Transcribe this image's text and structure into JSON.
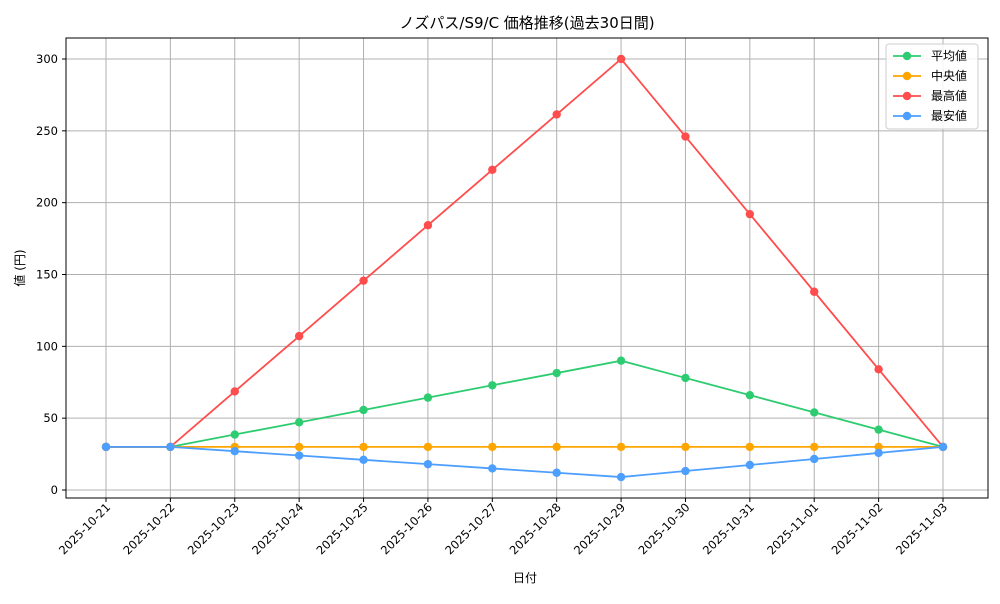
{
  "chart_data": {
    "type": "line",
    "title": "ノズパス/S9/C 価格推移(過去30日間)",
    "xlabel": "日付",
    "ylabel": "値 (円)",
    "categories": [
      "2025-10-21",
      "2025-10-22",
      "2025-10-23",
      "2025-10-24",
      "2025-10-25",
      "2025-10-26",
      "2025-10-27",
      "2025-10-28",
      "2025-10-29",
      "2025-10-30",
      "2025-10-31",
      "2025-11-01",
      "2025-11-02",
      "2025-11-03"
    ],
    "ylim": [
      -6,
      314
    ],
    "yticks": [
      0,
      50,
      100,
      150,
      200,
      250,
      300
    ],
    "grid": true,
    "legend_position": "upper right",
    "series": [
      {
        "name": "平均値",
        "color": "#2ecc71",
        "values": [
          30,
          30,
          38.6,
          47.1,
          55.7,
          64.3,
          72.9,
          81.4,
          90,
          78,
          66,
          54,
          42,
          30
        ]
      },
      {
        "name": "中央値",
        "color": "#ffa500",
        "values": [
          30,
          30,
          30,
          30,
          30,
          30,
          30,
          30,
          30,
          30,
          30,
          30,
          30,
          30
        ]
      },
      {
        "name": "最高値",
        "color": "#ff4d4d",
        "values": [
          30,
          30,
          68.6,
          107.1,
          145.7,
          184.3,
          222.9,
          261.4,
          300,
          246,
          192,
          138,
          84,
          30
        ]
      },
      {
        "name": "最安値",
        "color": "#4d9fff",
        "values": [
          30,
          30,
          27,
          24,
          21,
          18,
          15,
          12,
          9,
          13.2,
          17.4,
          21.6,
          25.8,
          30
        ]
      }
    ]
  }
}
